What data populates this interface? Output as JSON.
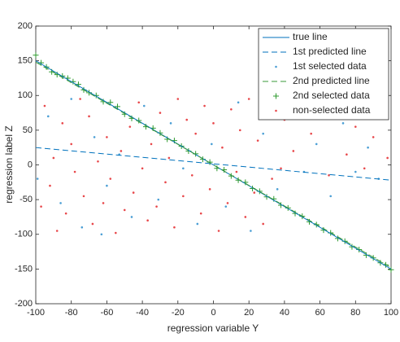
{
  "chart_data": {
    "type": "scatter",
    "x_label": "regression variable Y",
    "y_label": "regression label Z",
    "xlim": [
      -100,
      100
    ],
    "xticks": [
      -100,
      -80,
      -60,
      -40,
      -20,
      0,
      20,
      40,
      60,
      80,
      100
    ],
    "ylim": [
      -200,
      200
    ],
    "yticks": [
      -200,
      -150,
      -100,
      -50,
      0,
      50,
      100,
      150,
      200
    ],
    "legend": "upper right",
    "series": [
      {
        "name": "true line",
        "color": "#0072bd",
        "style": "solid",
        "x": [
          -100,
          100
        ],
        "values": [
          150,
          -150
        ]
      },
      {
        "name": "1st predicted line",
        "color": "#0072bd",
        "style": "dashed",
        "x": [
          -100,
          100
        ],
        "values": [
          25,
          -22
        ]
      },
      {
        "name": "1st selected data",
        "color": "#4b9fd5",
        "style": "dot",
        "x": [
          -99,
          -93,
          -86,
          -80,
          -74,
          -67,
          -60,
          -53,
          -46,
          -39,
          -31,
          -24,
          -17,
          -9,
          -1,
          7,
          14,
          21,
          28,
          36,
          43,
          51,
          58,
          66,
          73,
          80,
          87,
          93,
          96,
          -63
        ],
        "values": [
          -20,
          70,
          -55,
          95,
          -90,
          40,
          -30,
          15,
          -75,
          85,
          -50,
          60,
          -5,
          -85,
          30,
          -60,
          90,
          -95,
          45,
          -35,
          75,
          -10,
          30,
          -45,
          60,
          -10,
          25,
          -20,
          70,
          -100
        ]
      },
      {
        "name": "2nd predicted line",
        "color": "#3a9a3a",
        "style": "dashed",
        "x": [
          -100,
          100
        ],
        "values": [
          148,
          -148
        ]
      },
      {
        "name": "2nd selected data",
        "color": "#2e9a2e",
        "style": "plus",
        "x": [
          -100,
          -97,
          -94,
          -91,
          -88,
          -85,
          -82,
          -79,
          -76,
          -73,
          -70,
          -66,
          -62,
          -58,
          -54,
          -50,
          -46,
          -42,
          -38,
          -34,
          -30,
          -26,
          -22,
          -18,
          -14,
          -10,
          -6,
          -2,
          2,
          6,
          10,
          14,
          18,
          22,
          26,
          30,
          34,
          38,
          42,
          46,
          50,
          54,
          58,
          62,
          66,
          70,
          74,
          78,
          82,
          86,
          90,
          94,
          97,
          100
        ],
        "values": [
          158,
          147,
          141,
          134,
          130,
          128,
          125,
          120,
          116,
          108,
          104,
          100,
          91,
          90,
          84,
          73,
          67,
          64,
          55,
          53,
          46,
          37,
          35,
          27,
          20,
          16,
          8,
          4,
          -5,
          -7,
          -16,
          -22,
          -25,
          -34,
          -38,
          -46,
          -49,
          -58,
          -62,
          -70,
          -74,
          -82,
          -86,
          -94,
          -98,
          -106,
          -110,
          -118,
          -122,
          -130,
          -134,
          -141,
          -144,
          -151
        ]
      },
      {
        "name": "non-selected data",
        "color": "#e8474a",
        "style": "dot",
        "x": [
          -97,
          -95,
          -92,
          -90,
          -88,
          -85,
          -83,
          -80,
          -78,
          -75,
          -73,
          -70,
          -68,
          -65,
          -62,
          -60,
          -58,
          -55,
          -52,
          -50,
          -47,
          -45,
          -42,
          -40,
          -37,
          -35,
          -32,
          -30,
          -27,
          -25,
          -22,
          -20,
          -17,
          -15,
          -12,
          -10,
          -7,
          -5,
          -2,
          0,
          3,
          5,
          8,
          10,
          13,
          15,
          18,
          20,
          23,
          25,
          28,
          30,
          33,
          35,
          38,
          40,
          45,
          50,
          55,
          60,
          65,
          70,
          75,
          80,
          85,
          90,
          95,
          98
        ],
        "values": [
          -60,
          85,
          -30,
          10,
          -95,
          60,
          -70,
          30,
          -10,
          95,
          -45,
          70,
          -85,
          5,
          -55,
          40,
          -20,
          -98,
          20,
          -65,
          55,
          -40,
          90,
          -5,
          -80,
          30,
          -60,
          75,
          -25,
          10,
          -90,
          95,
          -45,
          65,
          -15,
          45,
          -70,
          85,
          -35,
          60,
          -95,
          25,
          -55,
          80,
          -10,
          50,
          -75,
          95,
          -40,
          35,
          -85,
          70,
          -20,
          90,
          -5,
          65,
          20,
          95,
          45,
          75,
          -15,
          85,
          15,
          55,
          -5,
          40,
          90,
          10
        ]
      }
    ]
  }
}
